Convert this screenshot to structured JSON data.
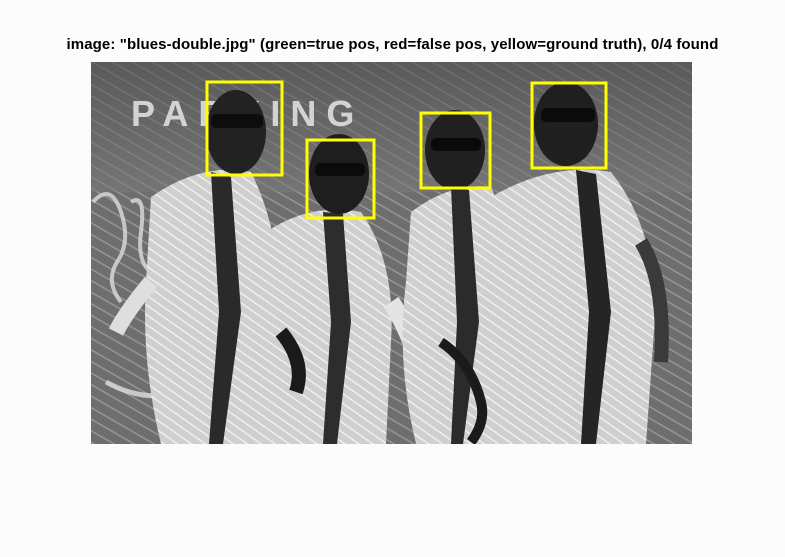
{
  "figure": {
    "title": "image: \"blues-double.jpg\" (green=true pos, red=false pos, yellow=ground truth), 0/4 found"
  },
  "photo": {
    "background_sign_text": "PARKING",
    "detections": {
      "true_positive_color": "#00c000",
      "false_positive_color": "#e00000",
      "ground_truth_color": "#ffff00",
      "ground_truth_count": 4,
      "found_count": 0
    }
  }
}
